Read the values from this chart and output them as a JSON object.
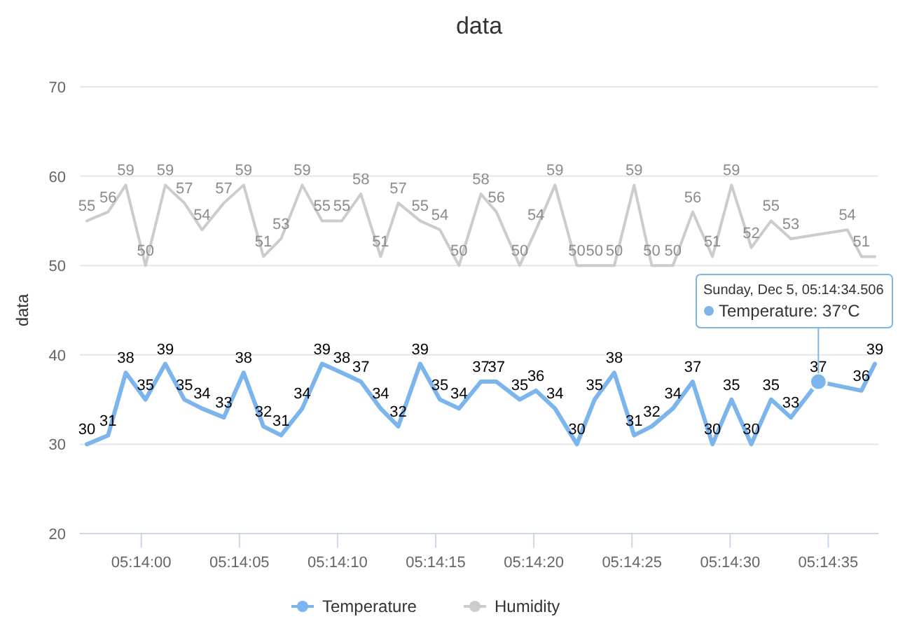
{
  "chart_data": {
    "type": "line",
    "title": "data",
    "ylabel": "data",
    "x": [
      5.23256,
      5.23286,
      5.23311,
      5.23339,
      5.23367,
      5.23394,
      5.23419,
      5.2345,
      5.23478,
      5.23506,
      5.23531,
      5.23561,
      5.23589,
      5.23617,
      5.23644,
      5.23672,
      5.23697,
      5.23728,
      5.23756,
      5.23783,
      5.23814,
      5.23836,
      5.23869,
      5.23892,
      5.23919,
      5.2395,
      5.23975,
      5.24003,
      5.24031,
      5.24056,
      5.24086,
      5.24114,
      5.24142,
      5.24169,
      5.24197,
      5.24225,
      5.24253,
      5.24292,
      5.24353,
      5.24372
    ],
    "series": [
      {
        "name": "Temperature",
        "color": "#7cb5ec",
        "values": [
          30,
          31,
          38,
          35,
          39,
          35,
          34,
          33,
          38,
          32,
          31,
          34,
          39,
          38,
          37,
          34,
          32,
          39,
          35,
          34,
          37,
          37,
          35,
          36,
          34,
          30,
          35,
          38,
          31,
          32,
          34,
          37,
          30,
          35,
          30,
          35,
          33,
          37,
          36,
          39
        ],
        "value_labels": [
          "30",
          "31",
          "38",
          "35",
          "39",
          "35",
          "34",
          "33",
          "38",
          "32",
          "31",
          "34",
          "39",
          "38",
          "37",
          "34",
          "32",
          "39",
          "35",
          "34",
          "37",
          "37",
          "35",
          "36",
          "34",
          "30",
          "35",
          "38",
          "31",
          "32",
          "34",
          "37",
          "30",
          "35",
          "30",
          "35",
          "33",
          "37",
          "36",
          "39"
        ]
      },
      {
        "name": "Humidity",
        "color": "#cccccc",
        "x": [
          5.23256,
          5.23286,
          5.23311,
          5.23339,
          5.23367,
          5.23394,
          5.23419,
          5.2345,
          5.23478,
          5.23506,
          5.23531,
          5.23561,
          5.23589,
          5.23617,
          5.23644,
          5.23672,
          5.23697,
          5.23728,
          5.23756,
          5.23783,
          5.23814,
          5.23836,
          5.23869,
          5.23892,
          5.23919,
          5.2395,
          5.23975,
          5.24003,
          5.24031,
          5.24056,
          5.24086,
          5.24114,
          5.24142,
          5.24169,
          5.24197,
          5.24225,
          5.24253,
          5.24333,
          5.24353,
          5.24372
        ],
        "values": [
          55,
          56,
          59,
          50,
          59,
          57,
          54,
          57,
          59,
          51,
          53,
          59,
          55,
          55,
          58,
          51,
          57,
          55,
          54,
          50,
          58,
          56,
          50,
          54,
          59,
          50,
          50,
          50,
          59,
          50,
          50,
          56,
          51,
          59,
          52,
          55,
          53,
          54,
          51,
          51
        ],
        "value_labels": [
          "55",
          "56",
          "59",
          "50",
          "59",
          "57",
          "54",
          "57",
          "59",
          "51",
          "53",
          "59",
          "55",
          "55",
          "58",
          "51",
          "57",
          "55",
          "54",
          "50",
          "58",
          "56",
          "50",
          "54",
          "59",
          "50",
          "50",
          "50",
          "59",
          "50",
          "50",
          "56",
          "51",
          "59",
          "52",
          "55",
          "53",
          "54",
          "51",
          null
        ]
      }
    ],
    "xlim": [
      5.23246,
      5.24377
    ],
    "xticks": [
      {
        "value": 5.23333,
        "label": "05:14:00"
      },
      {
        "value": 5.23472,
        "label": "05:14:05"
      },
      {
        "value": 5.23611,
        "label": "05:14:10"
      },
      {
        "value": 5.2375,
        "label": "05:14:15"
      },
      {
        "value": 5.23889,
        "label": "05:14:20"
      },
      {
        "value": 5.24028,
        "label": "05:14:25"
      },
      {
        "value": 5.24167,
        "label": "05:14:30"
      },
      {
        "value": 5.24306,
        "label": "05:14:35"
      }
    ],
    "ylim": [
      20,
      70
    ],
    "yticks": [
      20,
      30,
      40,
      50,
      60,
      70
    ],
    "grid": "y",
    "legend": "bottom",
    "annotations": [
      {
        "text": "Sunday, Dec 5, 05:14:34.506\nTemperature: 37°C",
        "x": 5.24292,
        "y": 37
      }
    ]
  }
}
